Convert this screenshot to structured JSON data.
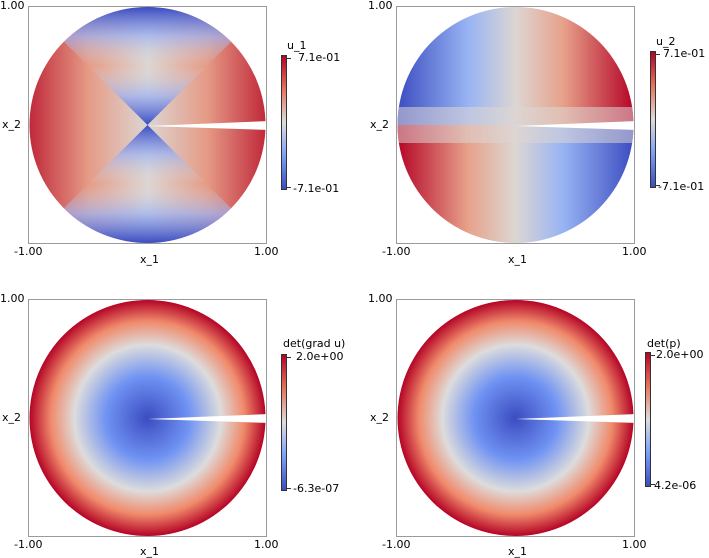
{
  "colors": {
    "high": "#b40426",
    "mid": "#dddcdc",
    "low": "#3b4cc0",
    "frame": "#9a9a9a"
  },
  "panels": [
    {
      "field": "u_1",
      "xlabel": "x_1",
      "ylabel": "x_2",
      "x_ticks": [
        "-1.00",
        "1.00"
      ],
      "y_top_tick": "1.00",
      "colorbar": {
        "title": "u_1",
        "max": "7.1e-01",
        "min": "-7.1e-01"
      }
    },
    {
      "field": "u_2",
      "xlabel": "x_1",
      "ylabel": "x_2",
      "x_ticks": [
        "-1.00",
        "1.00"
      ],
      "y_top_tick": "1.00",
      "colorbar": {
        "title": "u_2",
        "max": "7.1e-01",
        "min": "-7.1e-01"
      }
    },
    {
      "field": "det(grad u)",
      "xlabel": "x_1",
      "ylabel": "x_2",
      "x_ticks": [
        "-1.00",
        "1.00"
      ],
      "y_top_tick": "1.00",
      "colorbar": {
        "title": "det(grad u)",
        "max": "2.0e+00",
        "min": "-6.3e-07"
      }
    },
    {
      "field": "det(p)",
      "xlabel": "x_1",
      "ylabel": "x_2",
      "x_ticks": [
        "-1.00",
        "1.00"
      ],
      "y_top_tick": "1.00",
      "colorbar": {
        "title": "det(p)",
        "max": "2.0e+00",
        "min": "4.2e-06"
      }
    }
  ]
}
